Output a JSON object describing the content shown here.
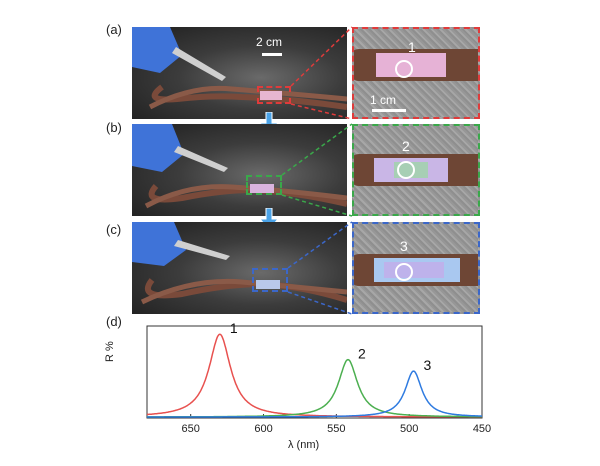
{
  "panels": [
    {
      "label": "(a)",
      "inset_number": "1",
      "color": "#e03b3b"
    },
    {
      "label": "(b)",
      "inset_number": "2",
      "color": "#3aa84a"
    },
    {
      "label": "(c)",
      "inset_number": "3",
      "color": "#3b67c9"
    }
  ],
  "photo_scale": "2 cm",
  "inset_scale": "1 cm",
  "chart_label": "(d)",
  "chart_data": {
    "type": "line",
    "xlabel": "λ (nm)",
    "ylabel": "R %",
    "xlim": [
      680,
      450
    ],
    "ylim": [
      0,
      80
    ],
    "x_ticks": [
      650,
      600,
      550,
      500,
      450
    ],
    "grid": false,
    "series": [
      {
        "name": "1",
        "color": "#e8514f",
        "peak": 630,
        "height": 72,
        "width": 9
      },
      {
        "name": "2",
        "color": "#4caf50",
        "peak": 542,
        "height": 50,
        "width": 8
      },
      {
        "name": "3",
        "color": "#2f7be0",
        "peak": 497,
        "height": 40,
        "width": 7
      }
    ]
  }
}
